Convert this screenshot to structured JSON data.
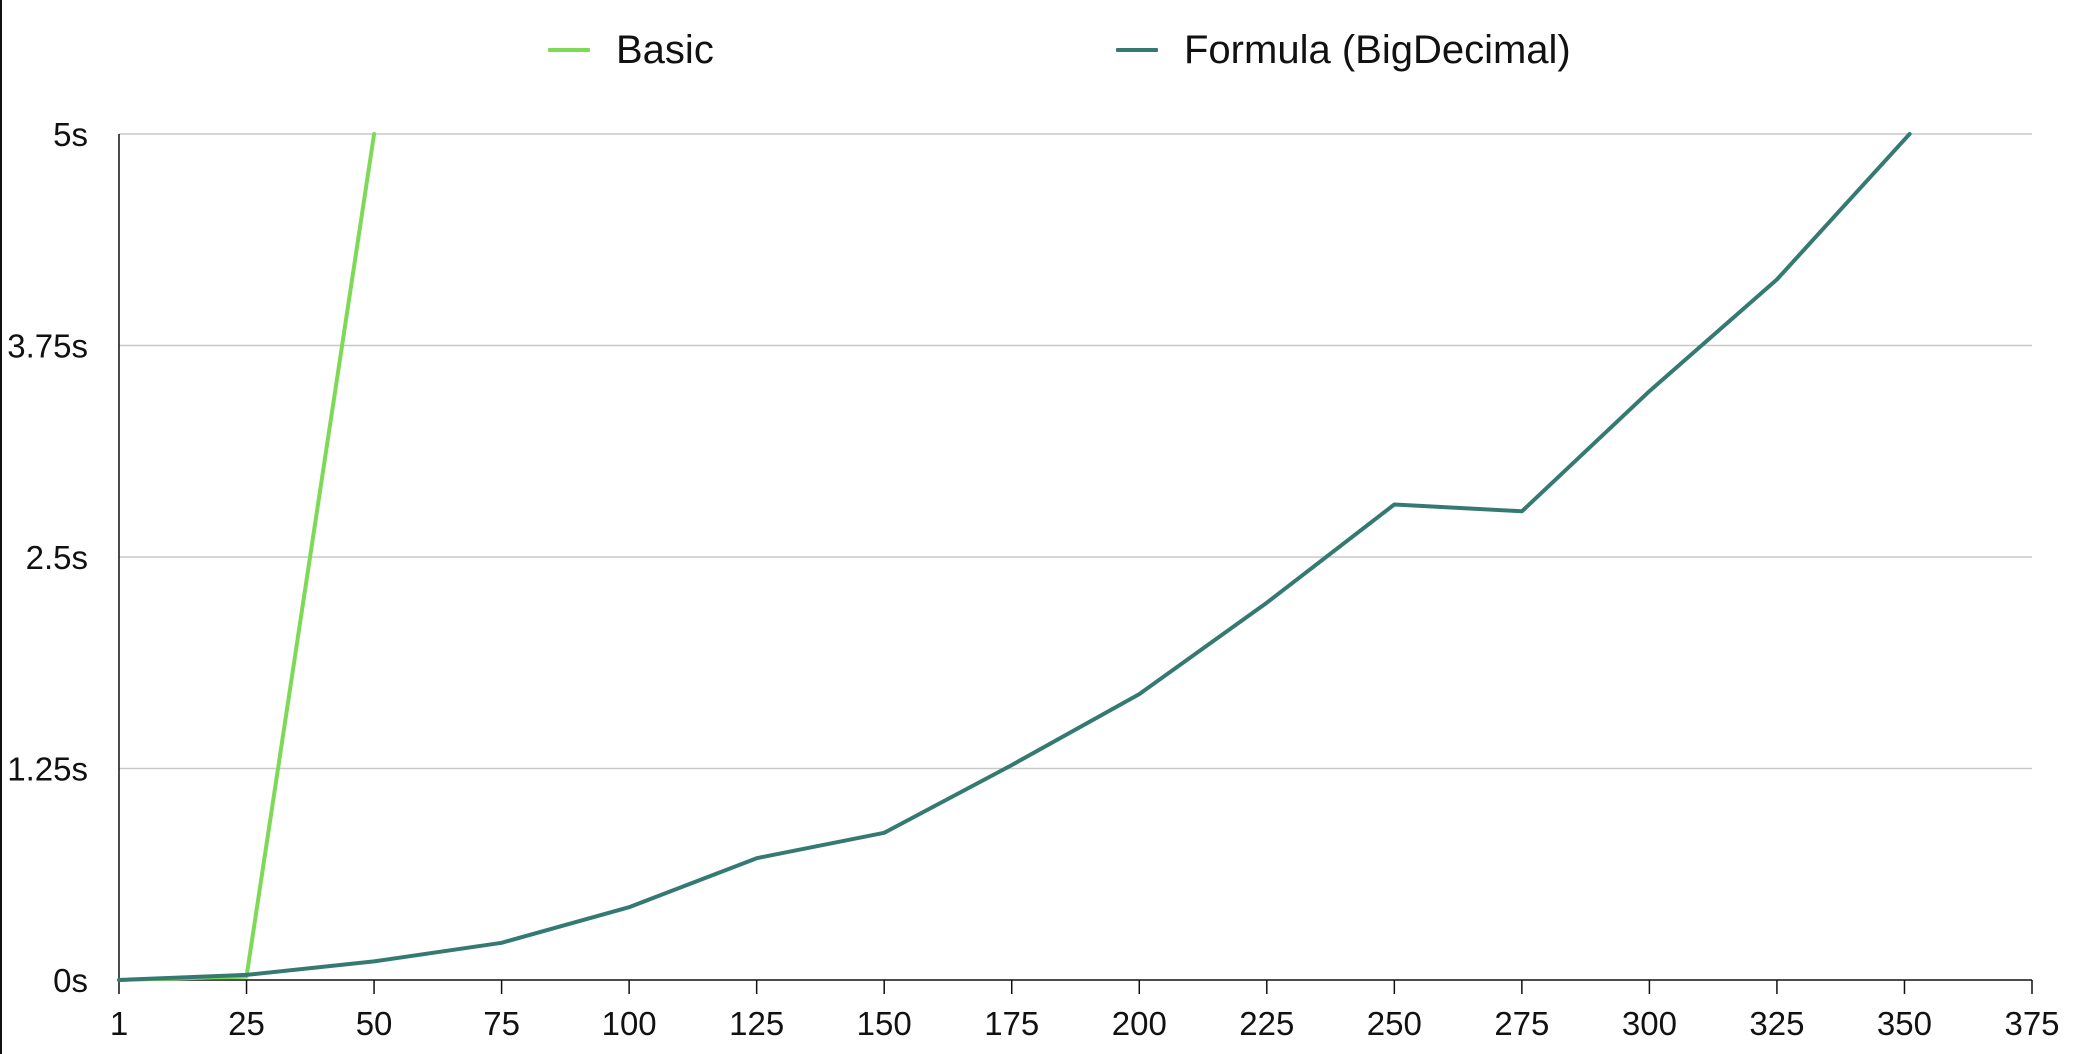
{
  "chart_data": {
    "type": "line",
    "title": "",
    "xlabel": "",
    "ylabel": "",
    "x": [
      1,
      25,
      50,
      75,
      100,
      125,
      150,
      175,
      200,
      225,
      250,
      275,
      300,
      325,
      350,
      375
    ],
    "x_tick_labels": [
      "1",
      "25",
      "50",
      "75",
      "100",
      "125",
      "150",
      "175",
      "200",
      "225",
      "250",
      "275",
      "300",
      "325",
      "350",
      "375"
    ],
    "y_ticks": [
      0,
      1.25,
      2.5,
      3.75,
      5
    ],
    "y_tick_labels": [
      "0s",
      "1.25s",
      "2.5s",
      "3.75s",
      "5s"
    ],
    "ylim": [
      0,
      5
    ],
    "y_unit": "s",
    "grid": true,
    "legend_position": "top",
    "series": [
      {
        "name": "Basic",
        "color": "#7ED957",
        "points": [
          [
            1,
            0.0
          ],
          [
            25,
            0.02
          ],
          [
            50,
            5.0
          ]
        ]
      },
      {
        "name": "Formula (BigDecimal)",
        "color": "#357A72",
        "points": [
          [
            1,
            0.0
          ],
          [
            25,
            0.03
          ],
          [
            50,
            0.11
          ],
          [
            75,
            0.22
          ],
          [
            100,
            0.43
          ],
          [
            125,
            0.72
          ],
          [
            150,
            0.87
          ],
          [
            175,
            1.27
          ],
          [
            200,
            1.69
          ],
          [
            225,
            2.23
          ],
          [
            250,
            2.81
          ],
          [
            275,
            2.77
          ],
          [
            300,
            3.48
          ],
          [
            325,
            4.14
          ],
          [
            351,
            5.0
          ]
        ]
      }
    ]
  }
}
